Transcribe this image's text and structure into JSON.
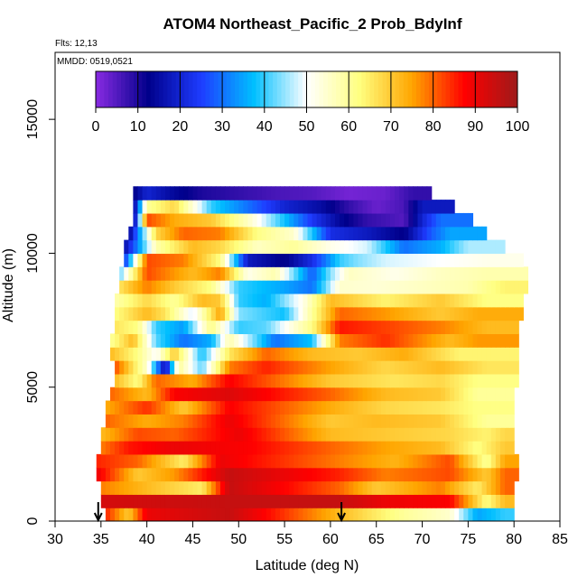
{
  "chart_data": {
    "type": "heatmap",
    "title": "ATOM4 Northeast_Pacific_2 Prob_BdyInf",
    "subtitle_flights": "Flts: 12,13",
    "subtitle_dates": "MMDD: 0519,0521",
    "xlabel": "Latitude (deg N)",
    "ylabel": "Altitude (m)",
    "xlim": [
      30,
      85
    ],
    "ylim": [
      0,
      17500
    ],
    "x_ticks": [
      "30",
      "35",
      "40",
      "45",
      "50",
      "55",
      "60",
      "65",
      "70",
      "75",
      "80",
      "85"
    ],
    "y_ticks": [
      "0",
      "5000",
      "10000",
      "15000"
    ],
    "colorbar": {
      "ticks": [
        "0",
        "10",
        "20",
        "30",
        "40",
        "50",
        "60",
        "70",
        "80",
        "90",
        "100"
      ],
      "range": [
        0,
        100
      ],
      "colors": [
        "#8a2be2",
        "#00008b",
        "#1e3cff",
        "#00bfff",
        "#ffffff",
        "#ffff80",
        "#ffa500",
        "#ff0000",
        "#9e1a1a"
      ]
    },
    "profile_markers_lat": [
      34.7,
      61.2
    ],
    "altitude_bands": [
      {
        "alt": 250,
        "lat_range": [
          35.5,
          80.0
        ],
        "segments": [
          [
            35.5,
            85
          ],
          [
            38,
            70
          ],
          [
            40,
            90
          ],
          [
            49,
            95
          ],
          [
            61,
            72
          ],
          [
            68,
            60
          ],
          [
            73,
            55
          ],
          [
            76,
            35
          ],
          [
            79,
            40
          ]
        ]
      },
      {
        "alt": 750,
        "lat_range": [
          35.0,
          80.0
        ],
        "segments": [
          [
            35,
            93
          ],
          [
            49,
            95
          ],
          [
            61,
            95
          ],
          [
            66,
            90
          ],
          [
            73,
            88
          ],
          [
            77,
            62
          ],
          [
            79,
            72
          ]
        ]
      },
      {
        "alt": 1250,
        "lat_range": [
          35.0,
          80.0
        ],
        "segments": [
          [
            35,
            78
          ],
          [
            40,
            72
          ],
          [
            46,
            65
          ],
          [
            49,
            95
          ],
          [
            61,
            80
          ],
          [
            65,
            70
          ],
          [
            72,
            78
          ],
          [
            76,
            65
          ],
          [
            79,
            80
          ]
        ]
      },
      {
        "alt": 1750,
        "lat_range": [
          34.5,
          80.5
        ],
        "segments": [
          [
            34.5,
            90
          ],
          [
            39,
            70
          ],
          [
            43,
            76
          ],
          [
            49,
            95
          ],
          [
            61,
            85
          ],
          [
            66,
            78
          ],
          [
            73,
            82
          ],
          [
            77,
            70
          ],
          [
            79,
            80
          ]
        ]
      },
      {
        "alt": 2250,
        "lat_range": [
          34.5,
          80.5
        ],
        "segments": [
          [
            34.5,
            85
          ],
          [
            39,
            80
          ],
          [
            44,
            65
          ],
          [
            48,
            90
          ],
          [
            61,
            78
          ],
          [
            67,
            73
          ],
          [
            73,
            82
          ],
          [
            77,
            60
          ],
          [
            79,
            75
          ]
        ]
      },
      {
        "alt": 2750,
        "lat_range": [
          35.0,
          80.0
        ],
        "segments": [
          [
            35,
            78
          ],
          [
            38,
            86
          ],
          [
            43,
            90
          ],
          [
            51,
            88
          ],
          [
            60,
            80
          ],
          [
            66,
            75
          ],
          [
            72,
            72
          ],
          [
            76,
            62
          ],
          [
            79,
            70
          ]
        ]
      },
      {
        "alt": 3250,
        "lat_range": [
          35.0,
          80.0
        ],
        "segments": [
          [
            35,
            72
          ],
          [
            39,
            82
          ],
          [
            43,
            80
          ],
          [
            50,
            90
          ],
          [
            60,
            72
          ],
          [
            66,
            70
          ],
          [
            73,
            68
          ],
          [
            77,
            64
          ],
          [
            79,
            68
          ]
        ]
      },
      {
        "alt": 3750,
        "lat_range": [
          35.5,
          80.0
        ],
        "segments": [
          [
            35.5,
            80
          ],
          [
            40,
            74
          ],
          [
            44,
            78
          ],
          [
            49,
            90
          ],
          [
            60,
            70
          ],
          [
            65,
            72
          ],
          [
            72,
            70
          ],
          [
            77,
            60
          ]
        ]
      },
      {
        "alt": 4250,
        "lat_range": [
          35.5,
          80.0
        ],
        "segments": [
          [
            35.5,
            74
          ],
          [
            40,
            84
          ],
          [
            44,
            70
          ],
          [
            49,
            88
          ],
          [
            60,
            74
          ],
          [
            66,
            68
          ],
          [
            72,
            66
          ],
          [
            76,
            62
          ]
        ]
      },
      {
        "alt": 4750,
        "lat_range": [
          36.0,
          80.0
        ],
        "segments": [
          [
            36,
            80
          ],
          [
            40,
            72
          ],
          [
            43,
            88
          ],
          [
            49,
            92
          ],
          [
            60,
            80
          ],
          [
            66,
            72
          ],
          [
            72,
            70
          ],
          [
            76,
            60
          ]
        ]
      },
      {
        "alt": 5250,
        "lat_range": [
          36.5,
          80.5
        ],
        "segments": [
          [
            36.5,
            72
          ],
          [
            39,
            62
          ],
          [
            41,
            80
          ],
          [
            45,
            74
          ],
          [
            49,
            88
          ],
          [
            60,
            70
          ],
          [
            67,
            66
          ],
          [
            72,
            68
          ],
          [
            76,
            62
          ]
        ]
      },
      {
        "alt": 5750,
        "lat_range": [
          36.5,
          80.5
        ],
        "segments": [
          [
            36.5,
            82
          ],
          [
            40,
            55
          ],
          [
            42,
            15
          ],
          [
            43.5,
            60
          ],
          [
            46,
            42
          ],
          [
            49,
            78
          ],
          [
            53,
            85
          ],
          [
            60,
            75
          ],
          [
            66,
            68
          ],
          [
            72,
            72
          ],
          [
            77,
            66
          ]
        ]
      },
      {
        "alt": 6250,
        "lat_range": [
          36.0,
          80.5
        ],
        "segments": [
          [
            36,
            72
          ],
          [
            39,
            62
          ],
          [
            41,
            50
          ],
          [
            43,
            70
          ],
          [
            46,
            38
          ],
          [
            49,
            66
          ],
          [
            53,
            80
          ],
          [
            58,
            72
          ],
          [
            63,
            70
          ],
          [
            68,
            74
          ],
          [
            74,
            64
          ]
        ]
      },
      {
        "alt": 6750,
        "lat_range": [
          36.0,
          80.5
        ],
        "segments": [
          [
            36,
            60
          ],
          [
            38.5,
            72
          ],
          [
            41,
            42
          ],
          [
            44,
            30
          ],
          [
            47,
            36
          ],
          [
            49,
            58
          ],
          [
            54,
            30
          ],
          [
            58,
            38
          ],
          [
            61,
            78
          ],
          [
            66,
            84
          ],
          [
            73,
            72
          ],
          [
            76,
            76
          ]
        ]
      },
      {
        "alt": 7250,
        "lat_range": [
          36.5,
          80.5
        ],
        "segments": [
          [
            36.5,
            66
          ],
          [
            39,
            62
          ],
          [
            41,
            40
          ],
          [
            44,
            34
          ],
          [
            47,
            62
          ],
          [
            50,
            40
          ],
          [
            53,
            42
          ],
          [
            58,
            62
          ],
          [
            61,
            86
          ],
          [
            67,
            82
          ],
          [
            72,
            78
          ],
          [
            77,
            72
          ]
        ]
      },
      {
        "alt": 7750,
        "lat_range": [
          36.5,
          81.0
        ],
        "segments": [
          [
            36.5,
            62
          ],
          [
            40,
            72
          ],
          [
            42,
            66
          ],
          [
            45,
            48
          ],
          [
            48,
            75
          ],
          [
            50,
            44
          ],
          [
            55,
            38
          ],
          [
            58,
            60
          ],
          [
            61,
            80
          ],
          [
            66,
            76
          ],
          [
            72,
            70
          ],
          [
            76,
            74
          ]
        ]
      },
      {
        "alt": 8250,
        "lat_range": [
          36.5,
          81.0
        ],
        "segments": [
          [
            36.5,
            58
          ],
          [
            40,
            68
          ],
          [
            43,
            60
          ],
          [
            46,
            72
          ],
          [
            48,
            70
          ],
          [
            50,
            40
          ],
          [
            53,
            36
          ],
          [
            57,
            52
          ],
          [
            60,
            72
          ],
          [
            66,
            64
          ],
          [
            72,
            70
          ],
          [
            77,
            62
          ]
        ]
      },
      {
        "alt": 8750,
        "lat_range": [
          37.0,
          81.5
        ],
        "segments": [
          [
            37,
            66
          ],
          [
            40,
            78
          ],
          [
            43,
            70
          ],
          [
            47,
            62
          ],
          [
            50,
            40
          ],
          [
            55,
            35
          ],
          [
            58,
            30
          ],
          [
            61,
            55
          ],
          [
            65,
            54
          ],
          [
            70,
            56
          ],
          [
            75,
            58
          ],
          [
            79,
            64
          ]
        ]
      },
      {
        "alt": 9250,
        "lat_range": [
          37.0,
          81.5
        ],
        "segments": [
          [
            37,
            42
          ],
          [
            38,
            55
          ],
          [
            40,
            82
          ],
          [
            45,
            72
          ],
          [
            48,
            78
          ],
          [
            51,
            52
          ],
          [
            54,
            58
          ],
          [
            58,
            28
          ],
          [
            60,
            44
          ],
          [
            62,
            56
          ],
          [
            67,
            52
          ],
          [
            72,
            56
          ],
          [
            77,
            58
          ]
        ]
      },
      {
        "alt": 9750,
        "lat_range": [
          37.5,
          81.0
        ],
        "segments": [
          [
            37.5,
            22
          ],
          [
            38.5,
            45
          ],
          [
            40,
            82
          ],
          [
            44,
            78
          ],
          [
            48,
            62
          ],
          [
            51,
            18
          ],
          [
            55,
            12
          ],
          [
            58,
            22
          ],
          [
            61,
            40
          ],
          [
            63,
            44
          ],
          [
            66,
            48
          ],
          [
            72,
            50
          ],
          [
            77,
            52
          ]
        ]
      },
      {
        "alt": 10250,
        "lat_range": [
          37.5,
          79.0
        ],
        "segments": [
          [
            37.5,
            15
          ],
          [
            39,
            32
          ],
          [
            41,
            58
          ],
          [
            45,
            72
          ],
          [
            48,
            68
          ],
          [
            52,
            56
          ],
          [
            56,
            60
          ],
          [
            60,
            52
          ],
          [
            64,
            48
          ],
          [
            68,
            30
          ],
          [
            72,
            36
          ],
          [
            75,
            46
          ]
        ]
      },
      {
        "alt": 10750,
        "lat_range": [
          38.0,
          77.0
        ],
        "segments": [
          [
            38,
            12
          ],
          [
            39.5,
            40
          ],
          [
            41,
            68
          ],
          [
            44,
            80
          ],
          [
            48,
            78
          ],
          [
            52,
            62
          ],
          [
            56,
            55
          ],
          [
            60,
            22
          ],
          [
            64,
            18
          ],
          [
            68,
            12
          ],
          [
            71,
            28
          ],
          [
            73,
            35
          ]
        ]
      },
      {
        "alt": 11250,
        "lat_range": [
          38.5,
          75.5
        ],
        "segments": [
          [
            38.5,
            8
          ],
          [
            40,
            82
          ],
          [
            43,
            74
          ],
          [
            47,
            70
          ],
          [
            51,
            56
          ],
          [
            55,
            38
          ],
          [
            58,
            24
          ],
          [
            61,
            14
          ],
          [
            64,
            8
          ],
          [
            68,
            5
          ],
          [
            70,
            20
          ],
          [
            72,
            30
          ]
        ]
      },
      {
        "alt": 11750,
        "lat_range": [
          38.5,
          73.5
        ],
        "segments": [
          [
            38.5,
            10
          ],
          [
            40,
            60
          ],
          [
            43,
            68
          ],
          [
            47,
            40
          ],
          [
            51,
            30
          ],
          [
            55,
            20
          ],
          [
            59,
            15
          ],
          [
            62,
            8
          ],
          [
            65,
            3
          ],
          [
            68,
            6
          ],
          [
            70,
            18
          ]
        ]
      },
      {
        "alt": 12250,
        "lat_range": [
          38.5,
          71.0
        ],
        "segments": [
          [
            38.5,
            12
          ],
          [
            40,
            20
          ],
          [
            43,
            14
          ],
          [
            46,
            10
          ],
          [
            50,
            8
          ],
          [
            54,
            6
          ],
          [
            58,
            5
          ],
          [
            62,
            2
          ],
          [
            66,
            3
          ],
          [
            69,
            8
          ]
        ]
      }
    ]
  }
}
